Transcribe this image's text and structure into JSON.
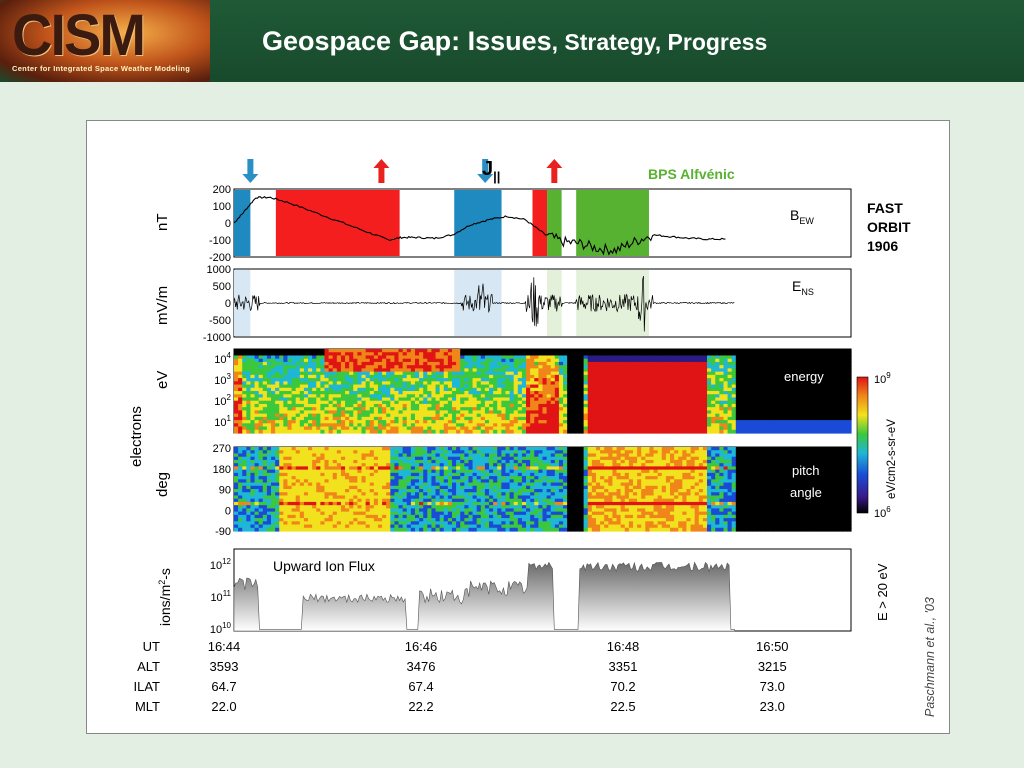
{
  "header": {
    "logo": "CISM",
    "logo_subtitle": "Center for Integrated Space Weather Modeling",
    "title_main": "Geospace Gap:  Issues",
    "title_rest": ", Strategy, Progress"
  },
  "figure": {
    "top_label": "J||",
    "bps_label": "BPS Alfvénic",
    "orbit_label": [
      "FAST",
      "ORBIT",
      "1906"
    ],
    "citation": "Paschmann  et al., '03",
    "colors": {
      "red": "#f51e1e",
      "blue": "#1f8ac0",
      "green": "#58b231",
      "arrow_blue": "#2a8fc4",
      "arrow_red": "#e8221e"
    }
  },
  "chart_data": [
    {
      "type": "line",
      "ylabel": "nT",
      "series_label": "B_EW",
      "yticks": [
        "200",
        "100",
        "0",
        "-100",
        "-200"
      ],
      "ylim": [
        -200,
        200
      ],
      "shaded_intervals": [
        {
          "color": "blue",
          "start": 0.0,
          "end": 0.09
        },
        {
          "color": "red",
          "start": 0.23,
          "end": 0.91
        },
        {
          "color": "blue",
          "start": 1.21,
          "end": 1.47
        },
        {
          "color": "red",
          "start": 1.64,
          "end": 1.72
        },
        {
          "color": "green",
          "start": 1.72,
          "end": 1.8
        },
        {
          "color": "green",
          "start": 1.88,
          "end": 2.28
        }
      ],
      "x_minutes": [
        0.0,
        0.05,
        0.12,
        0.2,
        0.3,
        0.45,
        0.6,
        0.75,
        0.85,
        0.92,
        1.0,
        1.1,
        1.2,
        1.3,
        1.4,
        1.5,
        1.6,
        1.7,
        1.8,
        1.9,
        2.0,
        2.1,
        2.2,
        2.3,
        2.4,
        2.5,
        2.6,
        2.7
      ],
      "y_nT": [
        0,
        60,
        150,
        150,
        120,
        60,
        0,
        -60,
        -100,
        -85,
        -85,
        -90,
        -70,
        -10,
        20,
        40,
        20,
        -60,
        -110,
        -120,
        -150,
        -160,
        -110,
        -70,
        -80,
        -90,
        -95,
        -95
      ]
    },
    {
      "type": "line",
      "ylabel": "mV/m",
      "series_label": "E_NS",
      "yticks": [
        "1000",
        "500",
        "0",
        "-500",
        "-1000"
      ],
      "ylim": [
        -1000,
        1000
      ],
      "shaded_intervals": [
        {
          "color": "blue",
          "start": 0.0,
          "end": 0.09
        },
        {
          "color": "blue",
          "start": 1.21,
          "end": 1.47
        },
        {
          "color": "green",
          "start": 1.72,
          "end": 1.8
        },
        {
          "color": "green",
          "start": 1.88,
          "end": 2.28
        }
      ],
      "burst_windows_minutes": [
        [
          0.0,
          0.14
        ],
        [
          1.25,
          1.42
        ],
        [
          1.6,
          1.8
        ],
        [
          1.88,
          2.3
        ]
      ]
    },
    {
      "type": "heatmap",
      "ylabel": "eV",
      "group_label": "electrons",
      "panel_label": "energy",
      "yticks": [
        "10^4",
        "10^3",
        "10^2",
        "10^1"
      ]
    },
    {
      "type": "heatmap",
      "ylabel": "deg",
      "panel_label": "pitch angle",
      "yticks": [
        "270",
        "180",
        "90",
        "0",
        "-90"
      ]
    },
    {
      "type": "area",
      "ylabel": "ions/m2-s",
      "panel_label": "Upward Ion Flux",
      "side_label": "E > 20 eV",
      "yticks": [
        "10^12",
        "10^11",
        "10^10"
      ]
    }
  ],
  "colorbar": {
    "top": "10^9",
    "bottom": "10^6",
    "label": "eV/cm2-s-sr-eV"
  },
  "axis": {
    "rows": [
      {
        "label": "UT",
        "values": [
          "16:44",
          "16:46",
          "16:48",
          "16:50"
        ]
      },
      {
        "label": "ALT",
        "values": [
          "3593",
          "3476",
          "3351",
          "3215"
        ]
      },
      {
        "label": "ILAT",
        "values": [
          "64.7",
          "67.4",
          "70.2",
          "73.0"
        ]
      },
      {
        "label": "MLT",
        "values": [
          "22.0",
          "22.2",
          "22.5",
          "23.0"
        ]
      }
    ]
  }
}
